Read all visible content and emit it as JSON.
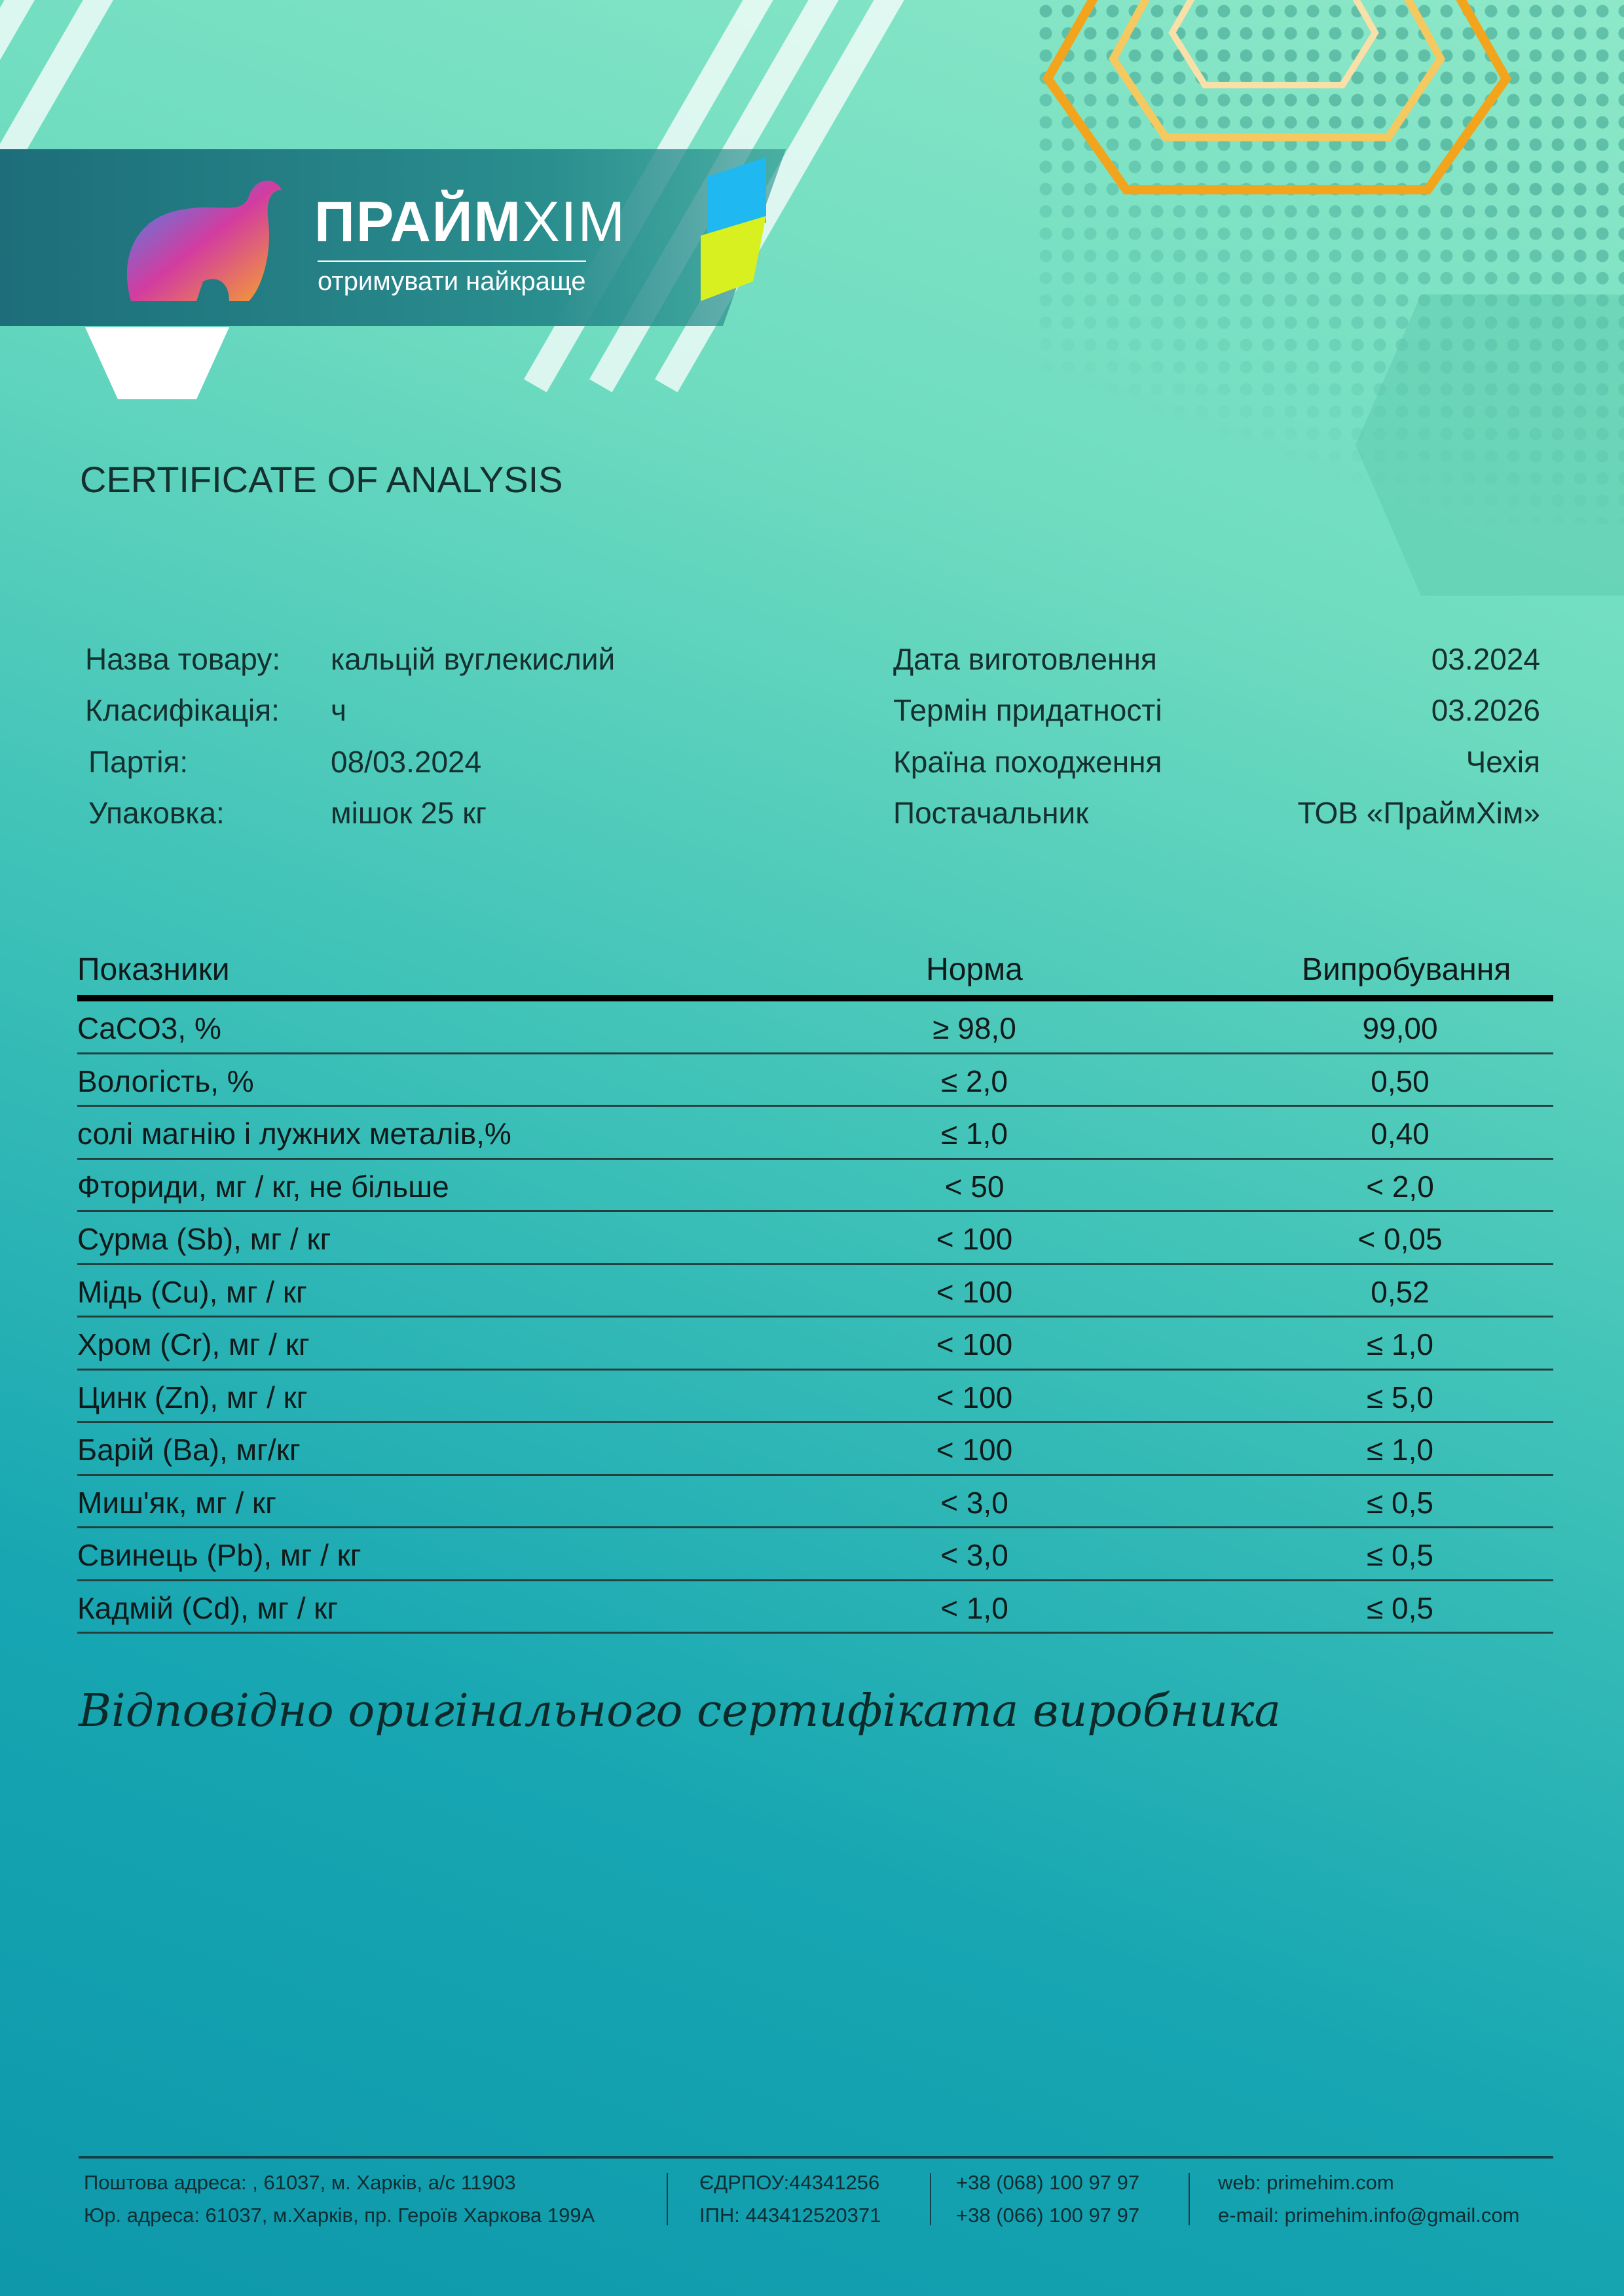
{
  "brand": {
    "name_bold": "ПРАЙМ",
    "name_light": "ХІМ",
    "slogan": "отримувати найкраще"
  },
  "title": "CERTIFICATE OF ANALYSIS",
  "info_left": [
    {
      "label": "Назва товару:",
      "value": "кальцій вуглекислий"
    },
    {
      "label": "Класифікація:",
      "value": "ч"
    },
    {
      "label": "Партія:",
      "value": "08/03.2024"
    },
    {
      "label": "Упаковка:",
      "value": "мішок 25 кг"
    }
  ],
  "info_right": [
    {
      "label": "Дата виготовлення",
      "value": "03.2024"
    },
    {
      "label": "Термін придатності",
      "value": "03.2026"
    },
    {
      "label": "Країна походження",
      "value": "Чехія"
    },
    {
      "label": "Постачальник",
      "value": "ТОВ «ПраймХім»"
    }
  ],
  "table": {
    "headers": [
      "Показники",
      "Норма",
      "Випробування"
    ],
    "rows": [
      [
        "CaCO3, %",
        "≥ 98,0",
        "99,00"
      ],
      [
        "Вологість, %",
        "≤ 2,0",
        "0,50"
      ],
      [
        "солі магнію і лужних металів,%",
        "≤ 1,0",
        "0,40"
      ],
      [
        "Фториди, мг / кг, не більше",
        "< 50",
        "< 2,0"
      ],
      [
        "Сурма (Sb), мг / кг",
        "< 100",
        "< 0,05"
      ],
      [
        "Мідь (Cu), мг / кг",
        "< 100",
        "0,52"
      ],
      [
        "Хром (Cr), мг / кг",
        "< 100",
        "≤ 1,0"
      ],
      [
        "Цинк (Zn), мг / кг",
        "< 100",
        "≤ 5,0"
      ],
      [
        "Барій (Ba), мг/кг",
        "< 100",
        "≤ 1,0"
      ],
      [
        "Миш'як, мг / кг",
        "< 3,0",
        "≤ 0,5"
      ],
      [
        "Свинець (Pb), мг / кг",
        "< 3,0",
        "≤ 0,5"
      ],
      [
        "Кадмій (Cd), мг / кг",
        "< 1,0",
        "≤ 0,5"
      ]
    ]
  },
  "signature_note": "Відповідно оригінального сертифіката виробника",
  "footer": {
    "postal": "Поштова адреса: , 61037, м. Харків, а/с 11903",
    "legal": "Юр. адреса: 61037, м.Харків, пр. Героїв Харкова 199А",
    "edrpou": "ЄДРПОУ:44341256",
    "ipn": "ІПН: 443412520371",
    "phone1": "+38 (068) 100 97 97",
    "phone2": "+38 (066) 100 97 97",
    "web": "web: primehim.com",
    "email": "e-mail: primehim.info@gmail.com"
  },
  "watermark": "ПраймХІМ primehim.com",
  "colors": {
    "bg_top": "#8de8c8",
    "bg_bottom": "#0e98aa",
    "band": "#1d6e7a"
  }
}
